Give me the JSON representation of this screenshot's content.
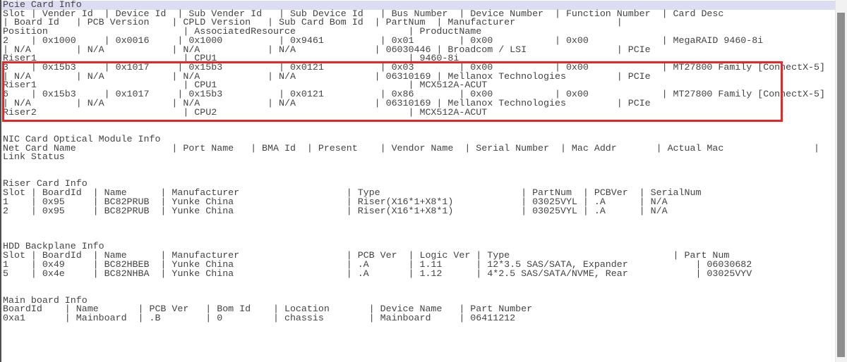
{
  "colors": {
    "selection_highlight_bg": "#dcdcf2",
    "annotation_box_red": "#e92525",
    "console_text": "#434343",
    "scrollbar_thumb": "#8e8e8e"
  },
  "console": {
    "lines": [
      "Pcie Card Info",
      "Slot | Vender Id  | Device Id  | Sub Vender Id   | Sub Device Id   | Bus Number  | Device Number  | Function Number  | Card Desc",
      "| Board Id   | PCB Version    | CPLD Version   | Sub Card Bom Id  | PartNum  | Manufacturer                  |",
      "Position                        | AssociatedResource                    | ProductName",
      "2    | 0x1000     | 0x0016     | 0x1000          | 0x9461          | 0x01        | 0x00           | 0x00             | MegaRAID 9460-8i",
      "| N/A        | N/A            | N/A            | N/A              | 06030446 | Broadcom / LSI                | PCIe",
      "Riser1                          | CPU1                                  | 9460-8i",
      "3    | 0x15b3     | 0x1017     | 0x15b3          | 0x0121          | 0x03        | 0x00           | 0x00             | MT27800 Family [ConnectX-5]",
      "| N/A        | N/A            | N/A            | N/A              | 06310169 | Mellanox Technologies         | PCIe",
      "Riser1                          | CPU1                                  | MCX512A-ACUT",
      "6    | 0x15b3     | 0x1017     | 0x15b3          | 0x0121          | 0x86        | 0x00           | 0x00             | MT27800 Family [ConnectX-5]",
      "| N/A        | N/A            | N/A            | N/A              | 06310169 | Mellanox Technologies         | PCIe",
      "Riser2                          | CPU2                                  | MCX512A-ACUT",
      "",
      "",
      "NIC Card Optical Module Info",
      "Net Card Name                 | Port Name   | BMA Id  | Present    | Vendor Name  | Serial Number  | Mac Addr       | Actual Mac                |",
      "Link Status",
      "",
      "",
      "Riser Card Info",
      "Slot | BoardId  | Name      | Manufacturer                   | Type                         | PartNum  | PCBVer  | SerialNum",
      "1    | 0x95     | BC82PRUB  | Yunke China                    | Riser(X16*1+X8*1)            | 03025VYL | .A      | N/A",
      "2    | 0x95     | BC82PRUB  | Yunke China                    | Riser(X16*1+X8*1)            | 03025VYL | .A      | N/A",
      "",
      "",
      "",
      "HDD Backplane Info",
      "Slot | BoardId  | Name      | Manufacturer                   | PCB Ver  | Logic Ver | Type                             | Part Num",
      "1    | 0x49     | BC82HBEB  | Yunke China                    | .A       | 1.11      | 12*3.5 SAS/SATA, Expander            | 06030682",
      "5    | 0x4e     | BC82NHBA  | Yunke China                    | .A       | 1.12      | 4*2.5 SAS/SATA/NVME, Rear            | 03025VYV",
      "",
      "",
      "Main board Info",
      "BoardId    | Name       | PCB Ver   | Bom Id    | Location       | Device Name   | Part Number",
      "0xa1       | Mainboard  | .B        | 0         | chassis        | Mainboard     | 06411212",
      "",
      "",
      "",
      "",
      ""
    ]
  }
}
